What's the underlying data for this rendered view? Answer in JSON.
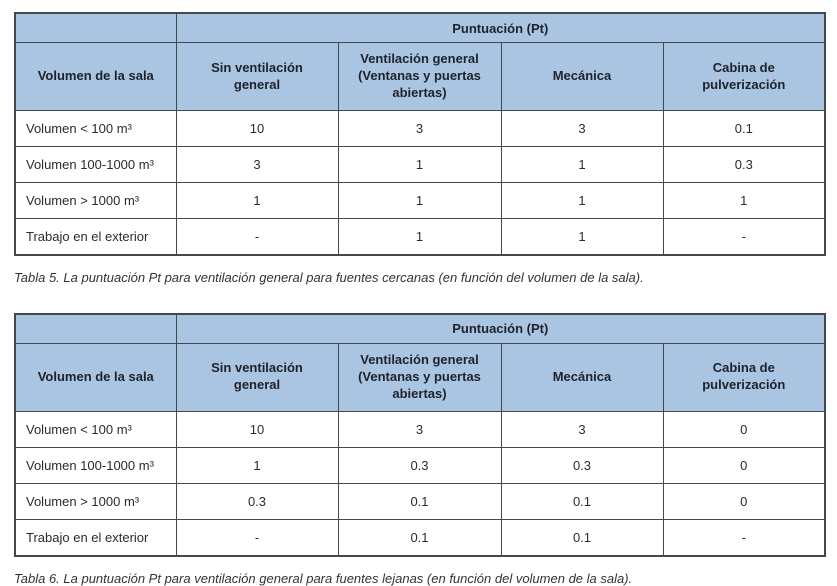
{
  "colors": {
    "header_bg": "#a9c5e2",
    "border": "#43474e",
    "text": "#2b2b2b"
  },
  "tables": [
    {
      "score_header": "Puntuación (Pt)",
      "row_header": "Volumen de la sala",
      "columns": [
        "Sin ventilación general",
        "Ventilación general (Ventanas y puertas abiertas)",
        "Mecánica",
        "Cabina de pulverización"
      ],
      "rows": [
        {
          "label": "Volumen < 100 m³",
          "values": [
            "10",
            "3",
            "3",
            "0.1"
          ]
        },
        {
          "label": "Volumen 100-1000 m³",
          "values": [
            "3",
            "1",
            "1",
            "0.3"
          ]
        },
        {
          "label": "Volumen > 1000 m³",
          "values": [
            "1",
            "1",
            "1",
            "1"
          ]
        },
        {
          "label": "Trabajo en el exterior",
          "values": [
            "-",
            "1",
            "1",
            "-"
          ]
        }
      ],
      "caption": "Tabla 5. La puntuación Pt para ventilación general para fuentes cercanas (en función del volumen de la sala)."
    },
    {
      "score_header": "Puntuación (Pt)",
      "row_header": "Volumen de la sala",
      "columns": [
        "Sin ventilación general",
        "Ventilación general (Ventanas y puertas abiertas)",
        "Mecánica",
        "Cabina de pulverización"
      ],
      "rows": [
        {
          "label": "Volumen < 100 m³",
          "values": [
            "10",
            "3",
            "3",
            "0"
          ]
        },
        {
          "label": "Volumen 100-1000 m³",
          "values": [
            "1",
            "0.3",
            "0.3",
            "0"
          ]
        },
        {
          "label": "Volumen > 1000 m³",
          "values": [
            "0.3",
            "0.1",
            "0.1",
            "0"
          ]
        },
        {
          "label": "Trabajo en el exterior",
          "values": [
            "-",
            "0.1",
            "0.1",
            "-"
          ]
        }
      ],
      "caption": "Tabla 6. La puntuación Pt para ventilación general para fuentes lejanas (en función del volumen de la sala)."
    }
  ]
}
